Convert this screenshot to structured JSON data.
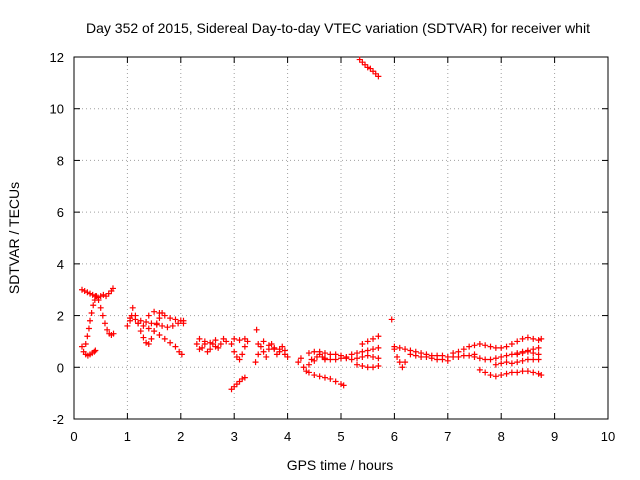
{
  "chart_data": {
    "type": "scatter",
    "title": "Day 352 of 2015, Sidereal Day-to-day VTEC variation (SDTVAR) for receiver whit",
    "xlabel": "GPS time / hours",
    "ylabel": "SDTVAR / TECUs",
    "xlim": [
      0,
      10
    ],
    "ylim": [
      -2,
      12
    ],
    "xticks": [
      "0",
      "1",
      "2",
      "3",
      "4",
      "5",
      "6",
      "7",
      "8",
      "9",
      "10"
    ],
    "yticks": [
      "-2",
      "0",
      "2",
      "4",
      "6",
      "8",
      "10",
      "12"
    ],
    "grid": true,
    "marker": "plus",
    "series": [
      {
        "name": "SDTVAR",
        "color": "#ff0000",
        "points": [
          [
            0.15,
            3.0
          ],
          [
            0.2,
            2.95
          ],
          [
            0.25,
            2.9
          ],
          [
            0.3,
            2.85
          ],
          [
            0.35,
            2.8
          ],
          [
            0.4,
            2.75
          ],
          [
            0.45,
            2.7
          ],
          [
            0.5,
            2.75
          ],
          [
            0.55,
            2.8
          ],
          [
            0.6,
            2.75
          ],
          [
            0.65,
            2.85
          ],
          [
            0.7,
            2.95
          ],
          [
            0.73,
            3.05
          ],
          [
            0.15,
            0.8
          ],
          [
            0.18,
            0.6
          ],
          [
            0.22,
            0.5
          ],
          [
            0.26,
            0.45
          ],
          [
            0.3,
            0.5
          ],
          [
            0.34,
            0.55
          ],
          [
            0.38,
            0.6
          ],
          [
            0.4,
            0.65
          ],
          [
            0.22,
            0.9
          ],
          [
            0.25,
            1.2
          ],
          [
            0.28,
            1.5
          ],
          [
            0.3,
            1.8
          ],
          [
            0.33,
            2.1
          ],
          [
            0.36,
            2.4
          ],
          [
            0.39,
            2.6
          ],
          [
            0.42,
            2.75
          ],
          [
            0.46,
            2.6
          ],
          [
            0.5,
            2.3
          ],
          [
            0.54,
            2.0
          ],
          [
            0.58,
            1.7
          ],
          [
            0.62,
            1.45
          ],
          [
            0.66,
            1.3
          ],
          [
            0.7,
            1.25
          ],
          [
            0.74,
            1.3
          ],
          [
            1.0,
            1.6
          ],
          [
            1.05,
            1.8
          ],
          [
            1.08,
            2.0
          ],
          [
            1.1,
            2.3
          ],
          [
            1.15,
            2.0
          ],
          [
            1.2,
            1.7
          ],
          [
            1.25,
            1.4
          ],
          [
            1.3,
            1.15
          ],
          [
            1.35,
            0.95
          ],
          [
            1.4,
            0.9
          ],
          [
            1.45,
            1.1
          ],
          [
            1.5,
            1.4
          ],
          [
            1.55,
            1.7
          ],
          [
            1.6,
            1.9
          ],
          [
            1.65,
            2.1
          ],
          [
            1.05,
            1.9
          ],
          [
            1.15,
            1.85
          ],
          [
            1.25,
            1.8
          ],
          [
            1.35,
            1.75
          ],
          [
            1.45,
            1.7
          ],
          [
            1.55,
            1.65
          ],
          [
            1.65,
            1.6
          ],
          [
            1.75,
            1.55
          ],
          [
            1.85,
            1.6
          ],
          [
            1.95,
            1.7
          ],
          [
            2.05,
            1.8
          ],
          [
            1.2,
            1.7
          ],
          [
            1.3,
            1.6
          ],
          [
            1.4,
            1.5
          ],
          [
            1.5,
            1.4
          ],
          [
            1.6,
            1.25
          ],
          [
            1.7,
            1.1
          ],
          [
            1.8,
            0.95
          ],
          [
            1.9,
            0.8
          ],
          [
            1.97,
            0.6
          ],
          [
            2.02,
            0.5
          ],
          [
            1.4,
            2.0
          ],
          [
            1.5,
            2.15
          ],
          [
            1.6,
            2.1
          ],
          [
            1.7,
            2.0
          ],
          [
            1.8,
            1.9
          ],
          [
            1.9,
            1.85
          ],
          [
            2.0,
            1.8
          ],
          [
            2.05,
            1.7
          ],
          [
            2.3,
            0.9
          ],
          [
            2.35,
            0.7
          ],
          [
            2.4,
            0.75
          ],
          [
            2.45,
            0.9
          ],
          [
            2.5,
            0.6
          ],
          [
            2.55,
            0.7
          ],
          [
            2.6,
            0.9
          ],
          [
            2.65,
            0.8
          ],
          [
            2.7,
            0.75
          ],
          [
            2.75,
            0.9
          ],
          [
            2.8,
            1.1
          ],
          [
            2.85,
            1.0
          ],
          [
            2.35,
            1.1
          ],
          [
            2.45,
            1.0
          ],
          [
            2.55,
            0.95
          ],
          [
            2.65,
            1.05
          ],
          [
            2.95,
            0.9
          ],
          [
            3.0,
            0.6
          ],
          [
            3.05,
            0.4
          ],
          [
            3.1,
            0.3
          ],
          [
            3.15,
            0.5
          ],
          [
            3.2,
            0.8
          ],
          [
            3.25,
            1.0
          ],
          [
            2.95,
            -0.85
          ],
          [
            3.0,
            -0.75
          ],
          [
            3.05,
            -0.65
          ],
          [
            3.1,
            -0.55
          ],
          [
            3.15,
            -0.45
          ],
          [
            3.2,
            -0.4
          ],
          [
            3.0,
            1.1
          ],
          [
            3.1,
            1.05
          ],
          [
            3.2,
            1.1
          ],
          [
            3.42,
            1.45
          ],
          [
            3.4,
            0.2
          ],
          [
            3.45,
            0.5
          ],
          [
            3.5,
            0.8
          ],
          [
            3.55,
            0.6
          ],
          [
            3.6,
            0.4
          ],
          [
            3.65,
            0.7
          ],
          [
            3.7,
            0.9
          ],
          [
            3.75,
            0.7
          ],
          [
            3.8,
            0.5
          ],
          [
            3.85,
            0.6
          ],
          [
            3.9,
            0.8
          ],
          [
            3.95,
            0.5
          ],
          [
            4.0,
            0.4
          ],
          [
            3.45,
            0.9
          ],
          [
            3.55,
            1.0
          ],
          [
            3.65,
            0.85
          ],
          [
            3.75,
            0.75
          ],
          [
            3.85,
            0.7
          ],
          [
            3.95,
            0.65
          ],
          [
            4.2,
            0.2
          ],
          [
            4.25,
            0.35
          ],
          [
            4.3,
            0.0
          ],
          [
            4.35,
            -0.15
          ],
          [
            4.4,
            0.1
          ],
          [
            4.45,
            0.3
          ],
          [
            4.5,
            0.25
          ],
          [
            4.55,
            0.4
          ],
          [
            4.6,
            0.5
          ],
          [
            4.65,
            0.4
          ],
          [
            4.7,
            0.3
          ],
          [
            4.4,
            -0.2
          ],
          [
            4.5,
            -0.3
          ],
          [
            4.6,
            -0.35
          ],
          [
            4.7,
            -0.4
          ],
          [
            4.8,
            -0.45
          ],
          [
            4.9,
            -0.55
          ],
          [
            5.0,
            -0.65
          ],
          [
            5.05,
            -0.7
          ],
          [
            4.4,
            0.55
          ],
          [
            4.5,
            0.6
          ],
          [
            4.6,
            0.6
          ],
          [
            4.7,
            0.55
          ],
          [
            4.8,
            0.5
          ],
          [
            4.9,
            0.5
          ],
          [
            5.0,
            0.45
          ],
          [
            5.1,
            0.4
          ],
          [
            5.2,
            0.5
          ],
          [
            5.3,
            0.55
          ],
          [
            5.4,
            0.6
          ],
          [
            5.5,
            0.65
          ],
          [
            5.6,
            0.7
          ],
          [
            5.7,
            0.75
          ],
          [
            4.7,
            0.35
          ],
          [
            4.8,
            0.3
          ],
          [
            4.9,
            0.3
          ],
          [
            5.0,
            0.35
          ],
          [
            5.1,
            0.35
          ],
          [
            5.2,
            0.3
          ],
          [
            5.3,
            0.35
          ],
          [
            5.4,
            0.4
          ],
          [
            5.5,
            0.45
          ],
          [
            5.6,
            0.4
          ],
          [
            5.7,
            0.35
          ],
          [
            5.3,
            0.1
          ],
          [
            5.4,
            0.05
          ],
          [
            5.5,
            0.0
          ],
          [
            5.6,
            0.0
          ],
          [
            5.7,
            0.05
          ],
          [
            5.4,
            0.9
          ],
          [
            5.5,
            1.0
          ],
          [
            5.6,
            1.1
          ],
          [
            5.7,
            1.2
          ],
          [
            5.35,
            11.9
          ],
          [
            5.4,
            11.8
          ],
          [
            5.45,
            11.7
          ],
          [
            5.5,
            11.6
          ],
          [
            5.55,
            11.55
          ],
          [
            5.6,
            11.45
          ],
          [
            5.65,
            11.35
          ],
          [
            5.7,
            11.25
          ],
          [
            5.95,
            1.85
          ],
          [
            6.0,
            0.7
          ],
          [
            6.05,
            0.4
          ],
          [
            6.1,
            0.2
          ],
          [
            6.15,
            0.0
          ],
          [
            6.2,
            0.2
          ],
          [
            6.0,
            0.8
          ],
          [
            6.1,
            0.75
          ],
          [
            6.2,
            0.7
          ],
          [
            6.3,
            0.65
          ],
          [
            6.4,
            0.6
          ],
          [
            6.5,
            0.55
          ],
          [
            6.6,
            0.5
          ],
          [
            6.7,
            0.45
          ],
          [
            6.8,
            0.45
          ],
          [
            6.9,
            0.45
          ],
          [
            7.0,
            0.4
          ],
          [
            7.1,
            0.4
          ],
          [
            7.2,
            0.4
          ],
          [
            7.3,
            0.45
          ],
          [
            7.4,
            0.45
          ],
          [
            7.5,
            0.5
          ],
          [
            6.3,
            0.5
          ],
          [
            6.4,
            0.45
          ],
          [
            6.5,
            0.4
          ],
          [
            6.6,
            0.4
          ],
          [
            6.7,
            0.35
          ],
          [
            6.8,
            0.3
          ],
          [
            6.9,
            0.3
          ],
          [
            7.0,
            0.25
          ],
          [
            7.1,
            0.55
          ],
          [
            7.2,
            0.6
          ],
          [
            7.3,
            0.7
          ],
          [
            7.4,
            0.8
          ],
          [
            7.5,
            0.85
          ],
          [
            7.6,
            0.9
          ],
          [
            7.7,
            0.85
          ],
          [
            7.8,
            0.8
          ],
          [
            7.9,
            0.75
          ],
          [
            8.0,
            0.75
          ],
          [
            8.1,
            0.8
          ],
          [
            8.2,
            0.9
          ],
          [
            8.3,
            1.0
          ],
          [
            8.4,
            1.1
          ],
          [
            8.5,
            1.15
          ],
          [
            8.6,
            1.1
          ],
          [
            8.7,
            1.05
          ],
          [
            8.75,
            1.1
          ],
          [
            7.5,
            0.4
          ],
          [
            7.6,
            0.35
          ],
          [
            7.7,
            0.3
          ],
          [
            7.8,
            0.3
          ],
          [
            7.9,
            0.35
          ],
          [
            8.0,
            0.4
          ],
          [
            8.1,
            0.45
          ],
          [
            8.2,
            0.5
          ],
          [
            8.3,
            0.55
          ],
          [
            8.4,
            0.6
          ],
          [
            8.5,
            0.65
          ],
          [
            8.6,
            0.7
          ],
          [
            8.7,
            0.75
          ],
          [
            7.6,
            -0.1
          ],
          [
            7.7,
            -0.2
          ],
          [
            7.8,
            -0.3
          ],
          [
            7.9,
            -0.35
          ],
          [
            8.0,
            -0.3
          ],
          [
            8.1,
            -0.25
          ],
          [
            8.2,
            -0.2
          ],
          [
            8.3,
            -0.2
          ],
          [
            8.4,
            -0.15
          ],
          [
            8.5,
            -0.15
          ],
          [
            8.6,
            -0.2
          ],
          [
            8.7,
            -0.25
          ],
          [
            8.75,
            -0.3
          ],
          [
            7.9,
            0.1
          ],
          [
            8.0,
            0.15
          ],
          [
            8.1,
            0.2
          ],
          [
            8.2,
            0.15
          ],
          [
            8.3,
            0.2
          ],
          [
            8.4,
            0.25
          ],
          [
            8.5,
            0.3
          ],
          [
            8.6,
            0.3
          ],
          [
            8.7,
            0.3
          ],
          [
            8.3,
            0.5
          ],
          [
            8.4,
            0.55
          ],
          [
            8.5,
            0.6
          ],
          [
            8.6,
            0.55
          ],
          [
            8.7,
            0.5
          ]
        ]
      }
    ]
  }
}
